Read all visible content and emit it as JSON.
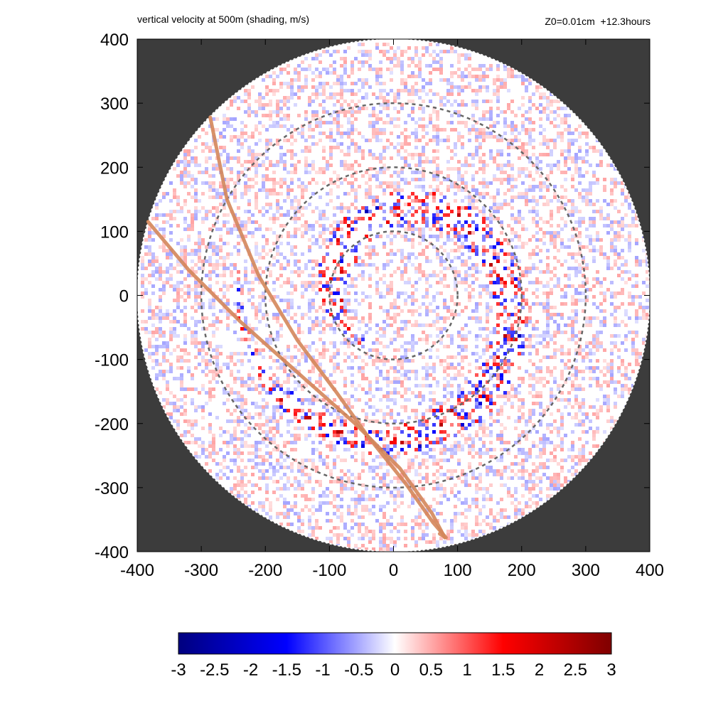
{
  "header": {
    "title_left": "vertical velocity at 500m (shading, m/s)",
    "title_right": "Z0=0.01cm  +12.3hours"
  },
  "chart_data": {
    "type": "heatmap",
    "title": "vertical velocity at 500m (shading, m/s)",
    "annotation": "Z0=0.01cm  +12.3hours",
    "xlim": [
      -400,
      400
    ],
    "ylim": [
      -400,
      400
    ],
    "x_ticks": [
      "-400",
      "-300",
      "-200",
      "-100",
      "0",
      "100",
      "200",
      "300",
      "400"
    ],
    "y_ticks": [
      "400",
      "300",
      "200",
      "100",
      "0",
      "-100",
      "-200",
      "-300",
      "-400"
    ],
    "domain_radius": 400,
    "background_color": "#3c3c3c",
    "range_rings": {
      "radii": [
        100,
        200,
        300
      ],
      "style": "dashed",
      "color": "#666666"
    },
    "tracks": [
      {
        "points": [
          [
            -286,
            278
          ],
          [
            -260,
            150
          ],
          [
            -210,
            30
          ],
          [
            -150,
            -70
          ],
          [
            -90,
            -150
          ],
          [
            -40,
            -220
          ],
          [
            20,
            -295
          ],
          [
            62,
            -355
          ],
          [
            82,
            -378
          ],
          [
            72,
            -372
          ]
        ]
      },
      {
        "points": [
          [
            -383,
            115
          ],
          [
            -320,
            40
          ],
          [
            -240,
            -40
          ],
          [
            -150,
            -120
          ],
          [
            -60,
            -200
          ],
          [
            10,
            -270
          ],
          [
            60,
            -340
          ],
          [
            80,
            -378
          ]
        ]
      }
    ],
    "track_color": "#d4865a",
    "colorbar": {
      "ticks": [
        "-3",
        "-2.5",
        "-2",
        "-1.5",
        "-1",
        "-0.5",
        "0",
        "0.5",
        "1",
        "1.5",
        "2",
        "2.5",
        "3"
      ],
      "range": [
        -3,
        3
      ],
      "stops": [
        "#00007f",
        "#0000ff",
        "#ffffff",
        "#ff0000",
        "#7f0000"
      ]
    }
  }
}
